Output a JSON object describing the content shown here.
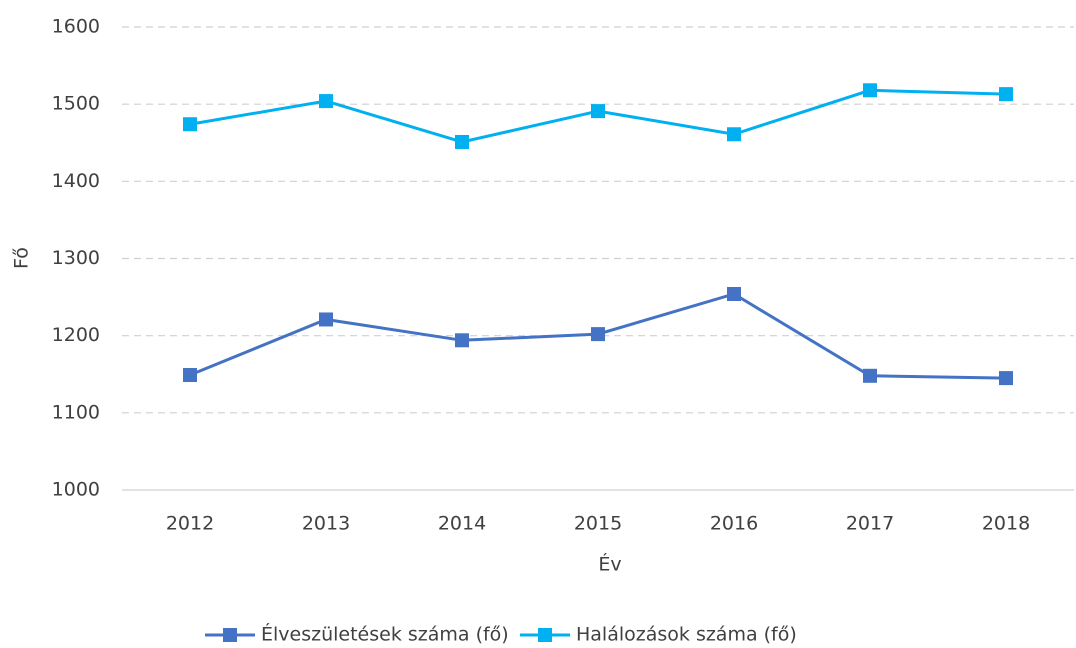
{
  "chart_data": {
    "type": "line",
    "x_label": "Év",
    "y_label": "Fő",
    "categories": [
      "2012",
      "2013",
      "2014",
      "2015",
      "2016",
      "2017",
      "2018"
    ],
    "series": [
      {
        "name": "Élveszületések száma (fő)",
        "color": "#4472c4",
        "values": [
          1149,
          1221,
          1194,
          1202,
          1254,
          1148,
          1145
        ]
      },
      {
        "name": "Halálozások száma (fő)",
        "color": "#00b0f0",
        "values": [
          1474,
          1504,
          1451,
          1491,
          1461,
          1518,
          1513
        ]
      }
    ],
    "ylim": [
      1000,
      1600
    ],
    "yticks": [
      1000,
      1100,
      1200,
      1300,
      1400,
      1500,
      1600
    ],
    "grid": true,
    "legend": "bottom"
  }
}
